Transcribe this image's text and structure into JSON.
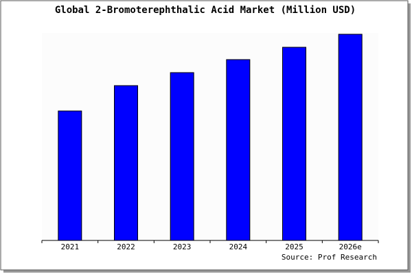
{
  "chart_data": {
    "type": "bar",
    "title": "Global 2-Bromoterephthalic Acid Market (Million USD)",
    "categories": [
      "2021",
      "2022",
      "2023",
      "2024",
      "2025",
      "2026e"
    ],
    "values": [
      189,
      226,
      245,
      264,
      282,
      301
    ],
    "color": "#0000ff",
    "ylim": [
      0,
      303
    ],
    "source": "Source: Prof Research"
  }
}
